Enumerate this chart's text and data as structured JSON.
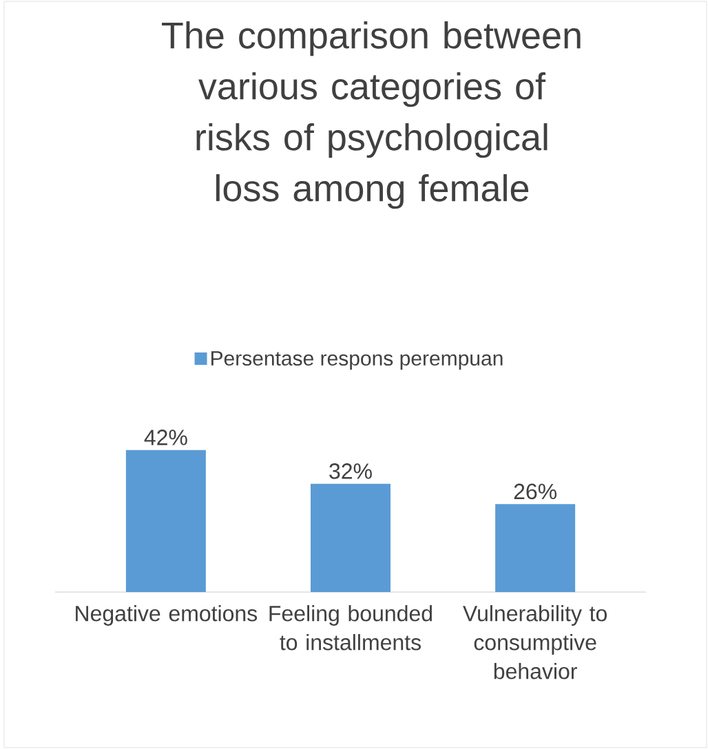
{
  "chart_data": {
    "type": "bar",
    "title": "The comparison between various categories of risks of psychological loss among female",
    "categories": [
      "Negative emotions",
      "Feeling bounded to installments",
      "Vulnerability to consumptive behavior"
    ],
    "series": [
      {
        "name": "Persentase respons perempuan",
        "color": "#5b9bd5",
        "values": [
          42,
          32,
          26
        ],
        "value_labels": [
          "42%",
          "32%",
          "26%"
        ]
      }
    ],
    "legend": "top"
  }
}
